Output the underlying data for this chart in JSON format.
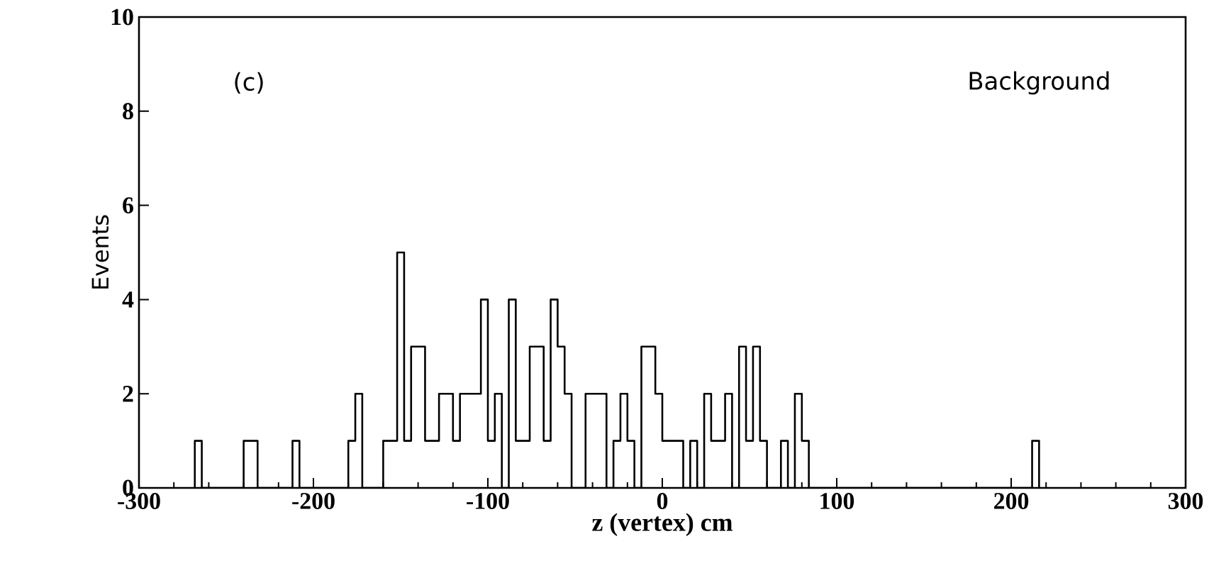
{
  "chart_data": {
    "type": "histogram",
    "xlabel": "z (vertex) cm",
    "ylabel": "Events",
    "annotations": [
      "(c)",
      "Background"
    ],
    "bins": [
      -268,
      -264,
      -260,
      -256,
      -252,
      -248,
      -244,
      -240,
      -236,
      -232,
      -228,
      -224,
      -220,
      -216,
      -212,
      -208,
      -204,
      -200,
      -196,
      -192,
      -188,
      -184,
      -180,
      -176,
      -172,
      -168,
      -164,
      -160,
      -156,
      -152,
      -148,
      -144,
      -140,
      -136,
      -132,
      -128,
      -124,
      -120,
      -116,
      -112,
      -108,
      -104,
      -100,
      -96,
      -92,
      -88,
      -84,
      -80,
      -76,
      -72,
      -68,
      -64,
      -60,
      -56,
      -52,
      -48,
      -44,
      -40,
      -36,
      -32,
      -28,
      -24,
      -20,
      -16,
      -12,
      -8,
      -4,
      0,
      4,
      8,
      12,
      16,
      20,
      24,
      28,
      32,
      36,
      40,
      44,
      48,
      52,
      56,
      60,
      64,
      68,
      72,
      76,
      80,
      84,
      88,
      92,
      96,
      100,
      104,
      108,
      112,
      116,
      120,
      124,
      128,
      132,
      136,
      140,
      144,
      148,
      152,
      156,
      160,
      164,
      168,
      172,
      176,
      180,
      184,
      188,
      192,
      196,
      200,
      204,
      208,
      212,
      216
    ],
    "values": [
      1,
      0,
      0,
      0,
      0,
      0,
      0,
      1,
      1,
      0,
      0,
      0,
      0,
      0,
      1,
      0,
      0,
      0,
      0,
      0,
      0,
      0,
      1,
      2,
      0,
      0,
      0,
      1,
      1,
      5,
      1,
      3,
      3,
      1,
      1,
      2,
      2,
      1,
      2,
      2,
      2,
      4,
      1,
      2,
      0,
      4,
      1,
      1,
      3,
      3,
      1,
      4,
      3,
      2,
      0,
      0,
      2,
      2,
      2,
      0,
      1,
      2,
      1,
      0,
      3,
      3,
      2,
      1,
      1,
      1,
      0,
      1,
      0,
      2,
      1,
      1,
      2,
      0,
      3,
      1,
      3,
      1,
      0,
      0,
      1,
      0,
      2,
      1,
      0,
      0,
      0,
      0,
      0,
      0,
      0,
      0,
      0,
      0,
      0,
      0,
      0,
      0,
      0,
      0,
      0,
      0,
      0,
      0,
      0,
      0,
      0,
      0,
      0,
      0,
      0,
      0,
      0,
      0,
      0,
      0,
      1
    ],
    "color": "#000000",
    "xlim": [
      -300,
      300
    ],
    "xticks": [
      -300,
      -200,
      -100,
      0,
      100,
      200,
      300
    ],
    "ylim": [
      0,
      10
    ],
    "yticks": [
      0,
      2,
      4,
      6,
      8,
      10
    ],
    "grid": false,
    "legend": false
  }
}
